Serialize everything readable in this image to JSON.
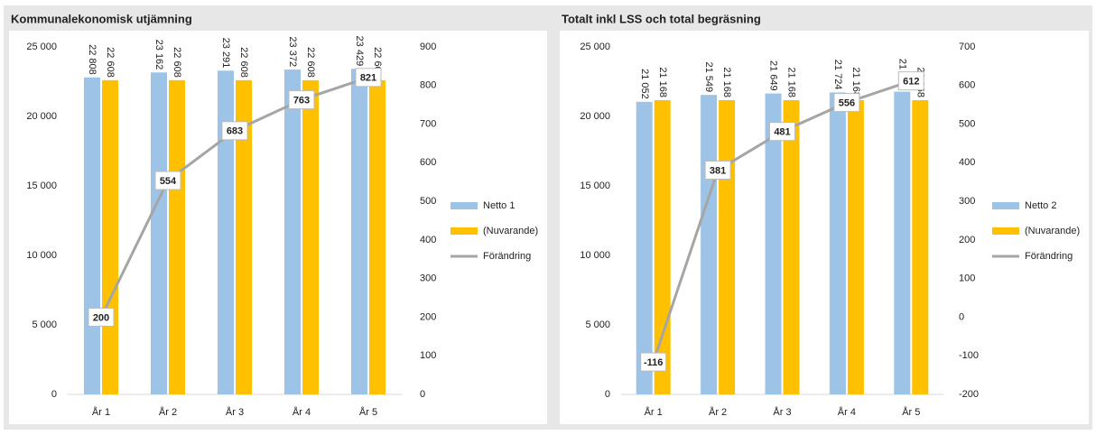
{
  "chart_data": [
    {
      "type": "bar",
      "title": "Kommunalekonomisk utjämning",
      "categories": [
        "År 1",
        "År 2",
        "År 3",
        "År 4",
        "År 5"
      ],
      "series": [
        {
          "name": "Netto 1",
          "color": "#9dc3e6",
          "values": [
            22808,
            23162,
            23291,
            23372,
            23429
          ],
          "value_labels": [
            "22 808",
            "23 162",
            "23 291",
            "23 372",
            "23 429"
          ]
        },
        {
          "name": "(Nuvarande)",
          "color": "#ffc000",
          "values": [
            22608,
            22608,
            22608,
            22608,
            22608
          ],
          "value_labels": [
            "22 608",
            "22 608",
            "22 608",
            "22 608",
            "22 608"
          ]
        },
        {
          "name": "Förändring",
          "color": "#a5a5a5",
          "type": "line",
          "axis": "y2",
          "values": [
            200,
            554,
            683,
            763,
            821
          ]
        }
      ],
      "ylim": [
        0,
        25000
      ],
      "yticks": [
        {
          "value": 0,
          "label": "0"
        },
        {
          "value": 5000,
          "label": "5 000"
        },
        {
          "value": 10000,
          "label": "10 000"
        },
        {
          "value": 15000,
          "label": "15 000"
        },
        {
          "value": 20000,
          "label": "20 000"
        },
        {
          "value": 25000,
          "label": "25 000"
        }
      ],
      "y2lim": [
        0,
        900
      ],
      "y2ticks": [
        0,
        100,
        200,
        300,
        400,
        500,
        600,
        700,
        800,
        900
      ],
      "legend": "right"
    },
    {
      "type": "bar",
      "title": "Totalt inkl LSS och total begräsning",
      "categories": [
        "År 1",
        "År 2",
        "År 3",
        "År 4",
        "År 5"
      ],
      "series": [
        {
          "name": "Netto 2",
          "color": "#9dc3e6",
          "values": [
            21052,
            21549,
            21649,
            21724,
            21780
          ],
          "value_labels": [
            "21 052",
            "21 549",
            "21 649",
            "21 724",
            "21 780"
          ]
        },
        {
          "name": "(Nuvarande)",
          "color": "#ffc000",
          "values": [
            21168,
            21168,
            21168,
            21168,
            21168
          ],
          "value_labels": [
            "21 168",
            "21 168",
            "21 168",
            "21 168",
            "21 168"
          ]
        },
        {
          "name": "Förändring",
          "color": "#a5a5a5",
          "type": "line",
          "axis": "y2",
          "values": [
            -116,
            381,
            481,
            556,
            612
          ]
        }
      ],
      "ylim": [
        0,
        25000
      ],
      "yticks": [
        {
          "value": 0,
          "label": "0"
        },
        {
          "value": 5000,
          "label": "5 000"
        },
        {
          "value": 10000,
          "label": "10 000"
        },
        {
          "value": 15000,
          "label": "15 000"
        },
        {
          "value": 20000,
          "label": "20 000"
        },
        {
          "value": 25000,
          "label": "25 000"
        }
      ],
      "y2lim": [
        -200,
        700
      ],
      "y2ticks": [
        -200,
        -100,
        0,
        100,
        200,
        300,
        400,
        500,
        600,
        700
      ],
      "legend": "right"
    }
  ]
}
